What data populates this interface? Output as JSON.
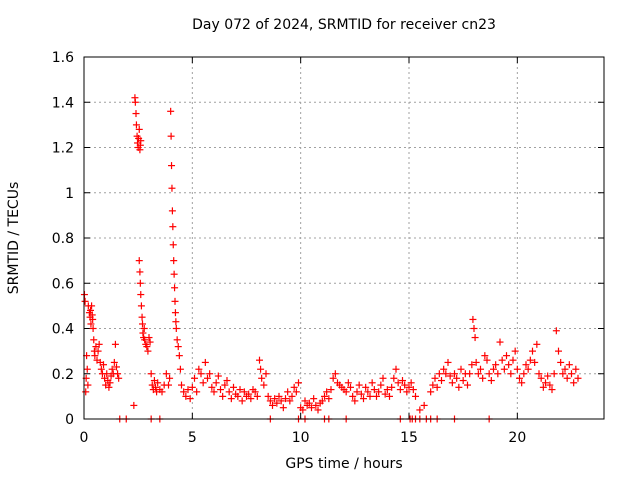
{
  "chart_data": {
    "type": "scatter",
    "title": "Day 072 of 2024, SRMTID for receiver cn23",
    "xlabel": "GPS time / hours",
    "ylabel": "SRMTID / TECUs",
    "xlim": [
      0,
      24
    ],
    "ylim": [
      0,
      1.6
    ],
    "grid": true,
    "x_ticks": [
      0,
      5,
      10,
      15,
      20
    ],
    "x_tick_labels": [
      "0",
      "5",
      "10",
      "15",
      "20"
    ],
    "y_ticks": [
      0,
      0.2,
      0.4,
      0.6,
      0.8,
      1.0,
      1.2,
      1.4,
      1.6
    ],
    "y_tick_labels": [
      "0",
      "0.2",
      "0.4",
      "0.6",
      "0.8",
      "1",
      "1.2",
      "1.4",
      "1.6"
    ],
    "marker": "+",
    "marker_color": "#ff0000",
    "series": [
      {
        "name": "SRMTID",
        "points": [
          [
            0.02,
            0.55
          ],
          [
            0.05,
            0.52
          ],
          [
            0.08,
            0.12
          ],
          [
            0.1,
            0.18
          ],
          [
            0.12,
            0.28
          ],
          [
            0.15,
            0.22
          ],
          [
            0.18,
            0.15
          ],
          [
            0.2,
            0.5
          ],
          [
            0.25,
            0.47
          ],
          [
            0.28,
            0.45
          ],
          [
            0.3,
            0.48
          ],
          [
            0.32,
            0.42
          ],
          [
            0.35,
            0.5
          ],
          [
            0.38,
            0.46
          ],
          [
            0.4,
            0.44
          ],
          [
            0.42,
            0.4
          ],
          [
            0.45,
            0.35
          ],
          [
            0.48,
            0.3
          ],
          [
            0.5,
            0.28
          ],
          [
            0.55,
            0.32
          ],
          [
            0.6,
            0.26
          ],
          [
            0.65,
            0.3
          ],
          [
            0.7,
            0.33
          ],
          [
            0.75,
            0.25
          ],
          [
            0.8,
            0.22
          ],
          [
            0.85,
            0.2
          ],
          [
            0.9,
            0.24
          ],
          [
            0.95,
            0.18
          ],
          [
            1.0,
            0.15
          ],
          [
            1.05,
            0.2
          ],
          [
            1.1,
            0.17
          ],
          [
            1.15,
            0.14
          ],
          [
            1.2,
            0.16
          ],
          [
            1.25,
            0.19
          ],
          [
            1.3,
            0.22
          ],
          [
            1.35,
            0.2
          ],
          [
            1.4,
            0.25
          ],
          [
            1.45,
            0.33
          ],
          [
            1.5,
            0.23
          ],
          [
            1.55,
            0.2
          ],
          [
            1.6,
            0.18
          ],
          [
            2.3,
            0.06
          ],
          [
            2.35,
            1.42
          ],
          [
            2.37,
            1.4
          ],
          [
            2.4,
            1.35
          ],
          [
            2.42,
            1.3
          ],
          [
            2.45,
            1.25
          ],
          [
            2.47,
            1.22
          ],
          [
            2.5,
            1.2
          ],
          [
            2.52,
            1.24
          ],
          [
            2.55,
            1.28
          ],
          [
            2.58,
            1.19
          ],
          [
            2.6,
            1.21
          ],
          [
            2.62,
            1.23
          ],
          [
            2.55,
            0.7
          ],
          [
            2.58,
            0.65
          ],
          [
            2.6,
            0.6
          ],
          [
            2.62,
            0.55
          ],
          [
            2.65,
            0.5
          ],
          [
            2.68,
            0.45
          ],
          [
            2.7,
            0.42
          ],
          [
            2.72,
            0.38
          ],
          [
            2.75,
            0.36
          ],
          [
            2.78,
            0.4
          ],
          [
            2.8,
            0.35
          ],
          [
            2.85,
            0.33
          ],
          [
            2.9,
            0.32
          ],
          [
            2.95,
            0.3
          ],
          [
            3.0,
            0.36
          ],
          [
            3.05,
            0.34
          ],
          [
            3.1,
            0.2
          ],
          [
            3.15,
            0.15
          ],
          [
            3.2,
            0.13
          ],
          [
            3.25,
            0.17
          ],
          [
            3.3,
            0.14
          ],
          [
            3.35,
            0.12
          ],
          [
            3.4,
            0.16
          ],
          [
            3.5,
            0.13
          ],
          [
            3.6,
            0.12
          ],
          [
            3.7,
            0.15
          ],
          [
            3.8,
            0.2
          ],
          [
            3.9,
            0.15
          ],
          [
            3.95,
            0.18
          ],
          [
            4.0,
            1.36
          ],
          [
            4.02,
            1.25
          ],
          [
            4.04,
            1.12
          ],
          [
            4.06,
            1.02
          ],
          [
            4.08,
            0.92
          ],
          [
            4.1,
            0.85
          ],
          [
            4.12,
            0.77
          ],
          [
            4.14,
            0.7
          ],
          [
            4.16,
            0.64
          ],
          [
            4.18,
            0.58
          ],
          [
            4.2,
            0.52
          ],
          [
            4.22,
            0.47
          ],
          [
            4.24,
            0.43
          ],
          [
            4.26,
            0.4
          ],
          [
            4.3,
            0.35
          ],
          [
            4.35,
            0.32
          ],
          [
            4.4,
            0.28
          ],
          [
            4.45,
            0.22
          ],
          [
            4.5,
            0.15
          ],
          [
            4.6,
            0.12
          ],
          [
            4.7,
            0.1
          ],
          [
            4.8,
            0.13
          ],
          [
            4.9,
            0.09
          ],
          [
            5.0,
            0.14
          ],
          [
            5.1,
            0.18
          ],
          [
            5.2,
            0.12
          ],
          [
            5.3,
            0.22
          ],
          [
            5.4,
            0.2
          ],
          [
            5.5,
            0.16
          ],
          [
            5.6,
            0.25
          ],
          [
            5.7,
            0.18
          ],
          [
            5.8,
            0.2
          ],
          [
            5.9,
            0.14
          ],
          [
            6.0,
            0.12
          ],
          [
            6.1,
            0.16
          ],
          [
            6.2,
            0.19
          ],
          [
            6.3,
            0.13
          ],
          [
            6.4,
            0.1
          ],
          [
            6.5,
            0.15
          ],
          [
            6.6,
            0.17
          ],
          [
            6.7,
            0.12
          ],
          [
            6.8,
            0.09
          ],
          [
            6.9,
            0.14
          ],
          [
            7.0,
            0.11
          ],
          [
            7.1,
            0.1
          ],
          [
            7.2,
            0.13
          ],
          [
            7.3,
            0.08
          ],
          [
            7.4,
            0.12
          ],
          [
            7.5,
            0.1
          ],
          [
            7.6,
            0.11
          ],
          [
            7.7,
            0.09
          ],
          [
            7.8,
            0.13
          ],
          [
            7.9,
            0.12
          ],
          [
            8.0,
            0.1
          ],
          [
            8.1,
            0.26
          ],
          [
            8.15,
            0.22
          ],
          [
            8.2,
            0.18
          ],
          [
            8.3,
            0.15
          ],
          [
            8.4,
            0.2
          ],
          [
            8.5,
            0.1
          ],
          [
            8.6,
            0.08
          ],
          [
            8.7,
            0.06
          ],
          [
            8.8,
            0.09
          ],
          [
            8.9,
            0.07
          ],
          [
            9.0,
            0.1
          ],
          [
            9.1,
            0.08
          ],
          [
            9.2,
            0.05
          ],
          [
            9.3,
            0.09
          ],
          [
            9.4,
            0.12
          ],
          [
            9.5,
            0.08
          ],
          [
            9.6,
            0.1
          ],
          [
            9.7,
            0.14
          ],
          [
            9.8,
            0.12
          ],
          [
            9.9,
            0.16
          ],
          [
            10.0,
            0.05
          ],
          [
            10.1,
            0.04
          ],
          [
            10.2,
            0.08
          ],
          [
            10.3,
            0.06
          ],
          [
            10.4,
            0.07
          ],
          [
            10.5,
            0.05
          ],
          [
            10.6,
            0.09
          ],
          [
            10.7,
            0.06
          ],
          [
            10.8,
            0.04
          ],
          [
            10.9,
            0.07
          ],
          [
            11.0,
            0.08
          ],
          [
            11.1,
            0.1
          ],
          [
            11.2,
            0.12
          ],
          [
            11.3,
            0.09
          ],
          [
            11.4,
            0.13
          ],
          [
            11.5,
            0.18
          ],
          [
            11.6,
            0.2
          ],
          [
            11.7,
            0.16
          ],
          [
            11.8,
            0.15
          ],
          [
            11.9,
            0.14
          ],
          [
            12.0,
            0.13
          ],
          [
            12.1,
            0.12
          ],
          [
            12.2,
            0.16
          ],
          [
            12.3,
            0.14
          ],
          [
            12.4,
            0.1
          ],
          [
            12.5,
            0.08
          ],
          [
            12.6,
            0.12
          ],
          [
            12.7,
            0.15
          ],
          [
            12.8,
            0.11
          ],
          [
            12.9,
            0.09
          ],
          [
            13.0,
            0.14
          ],
          [
            13.1,
            0.12
          ],
          [
            13.2,
            0.1
          ],
          [
            13.3,
            0.16
          ],
          [
            13.4,
            0.13
          ],
          [
            13.5,
            0.1
          ],
          [
            13.6,
            0.12
          ],
          [
            13.7,
            0.15
          ],
          [
            13.8,
            0.18
          ],
          [
            13.9,
            0.11
          ],
          [
            14.0,
            0.13
          ],
          [
            14.1,
            0.1
          ],
          [
            14.2,
            0.14
          ],
          [
            14.3,
            0.18
          ],
          [
            14.4,
            0.22
          ],
          [
            14.5,
            0.16
          ],
          [
            14.6,
            0.13
          ],
          [
            14.7,
            0.17
          ],
          [
            14.8,
            0.15
          ],
          [
            14.9,
            0.12
          ],
          [
            15.0,
            0.14
          ],
          [
            15.1,
            0.16
          ],
          [
            15.2,
            0.13
          ],
          [
            15.3,
            0.1
          ],
          [
            15.5,
            0.04
          ],
          [
            15.7,
            0.06
          ],
          [
            16.0,
            0.12
          ],
          [
            16.1,
            0.15
          ],
          [
            16.2,
            0.18
          ],
          [
            16.3,
            0.14
          ],
          [
            16.4,
            0.2
          ],
          [
            16.5,
            0.17
          ],
          [
            16.6,
            0.22
          ],
          [
            16.7,
            0.2
          ],
          [
            16.8,
            0.25
          ],
          [
            16.9,
            0.19
          ],
          [
            17.0,
            0.16
          ],
          [
            17.1,
            0.2
          ],
          [
            17.2,
            0.18
          ],
          [
            17.3,
            0.14
          ],
          [
            17.4,
            0.22
          ],
          [
            17.5,
            0.17
          ],
          [
            17.6,
            0.2
          ],
          [
            17.7,
            0.15
          ],
          [
            17.8,
            0.2
          ],
          [
            17.9,
            0.24
          ],
          [
            17.95,
            0.44
          ],
          [
            18.0,
            0.4
          ],
          [
            18.05,
            0.36
          ],
          [
            18.1,
            0.25
          ],
          [
            18.2,
            0.2
          ],
          [
            18.3,
            0.22
          ],
          [
            18.4,
            0.18
          ],
          [
            18.5,
            0.28
          ],
          [
            18.6,
            0.26
          ],
          [
            18.7,
            0.2
          ],
          [
            18.8,
            0.17
          ],
          [
            18.9,
            0.22
          ],
          [
            19.0,
            0.24
          ],
          [
            19.1,
            0.2
          ],
          [
            19.2,
            0.34
          ],
          [
            19.3,
            0.26
          ],
          [
            19.4,
            0.22
          ],
          [
            19.5,
            0.28
          ],
          [
            19.6,
            0.24
          ],
          [
            19.7,
            0.2
          ],
          [
            19.8,
            0.26
          ],
          [
            19.9,
            0.3
          ],
          [
            20.0,
            0.22
          ],
          [
            20.1,
            0.18
          ],
          [
            20.2,
            0.16
          ],
          [
            20.3,
            0.2
          ],
          [
            20.4,
            0.24
          ],
          [
            20.5,
            0.22
          ],
          [
            20.6,
            0.26
          ],
          [
            20.7,
            0.3
          ],
          [
            20.8,
            0.25
          ],
          [
            20.9,
            0.33
          ],
          [
            21.0,
            0.2
          ],
          [
            21.1,
            0.18
          ],
          [
            21.2,
            0.14
          ],
          [
            21.3,
            0.16
          ],
          [
            21.4,
            0.19
          ],
          [
            21.5,
            0.15
          ],
          [
            21.6,
            0.13
          ],
          [
            21.7,
            0.2
          ],
          [
            21.8,
            0.39
          ],
          [
            21.9,
            0.3
          ],
          [
            22.0,
            0.25
          ],
          [
            22.1,
            0.2
          ],
          [
            22.2,
            0.22
          ],
          [
            22.3,
            0.18
          ],
          [
            22.4,
            0.24
          ],
          [
            22.5,
            0.2
          ],
          [
            22.6,
            0.16
          ],
          [
            22.7,
            0.22
          ],
          [
            22.8,
            0.18
          ]
        ]
      }
    ],
    "zero_markers_x": [
      1.65,
      1.95,
      3.1,
      3.5,
      8.6,
      9.9,
      10.2,
      11.1,
      11.3,
      12.1,
      14.6,
      15.05,
      15.15,
      15.3,
      15.5,
      15.8,
      16.0,
      16.3,
      17.1,
      18.7
    ]
  }
}
